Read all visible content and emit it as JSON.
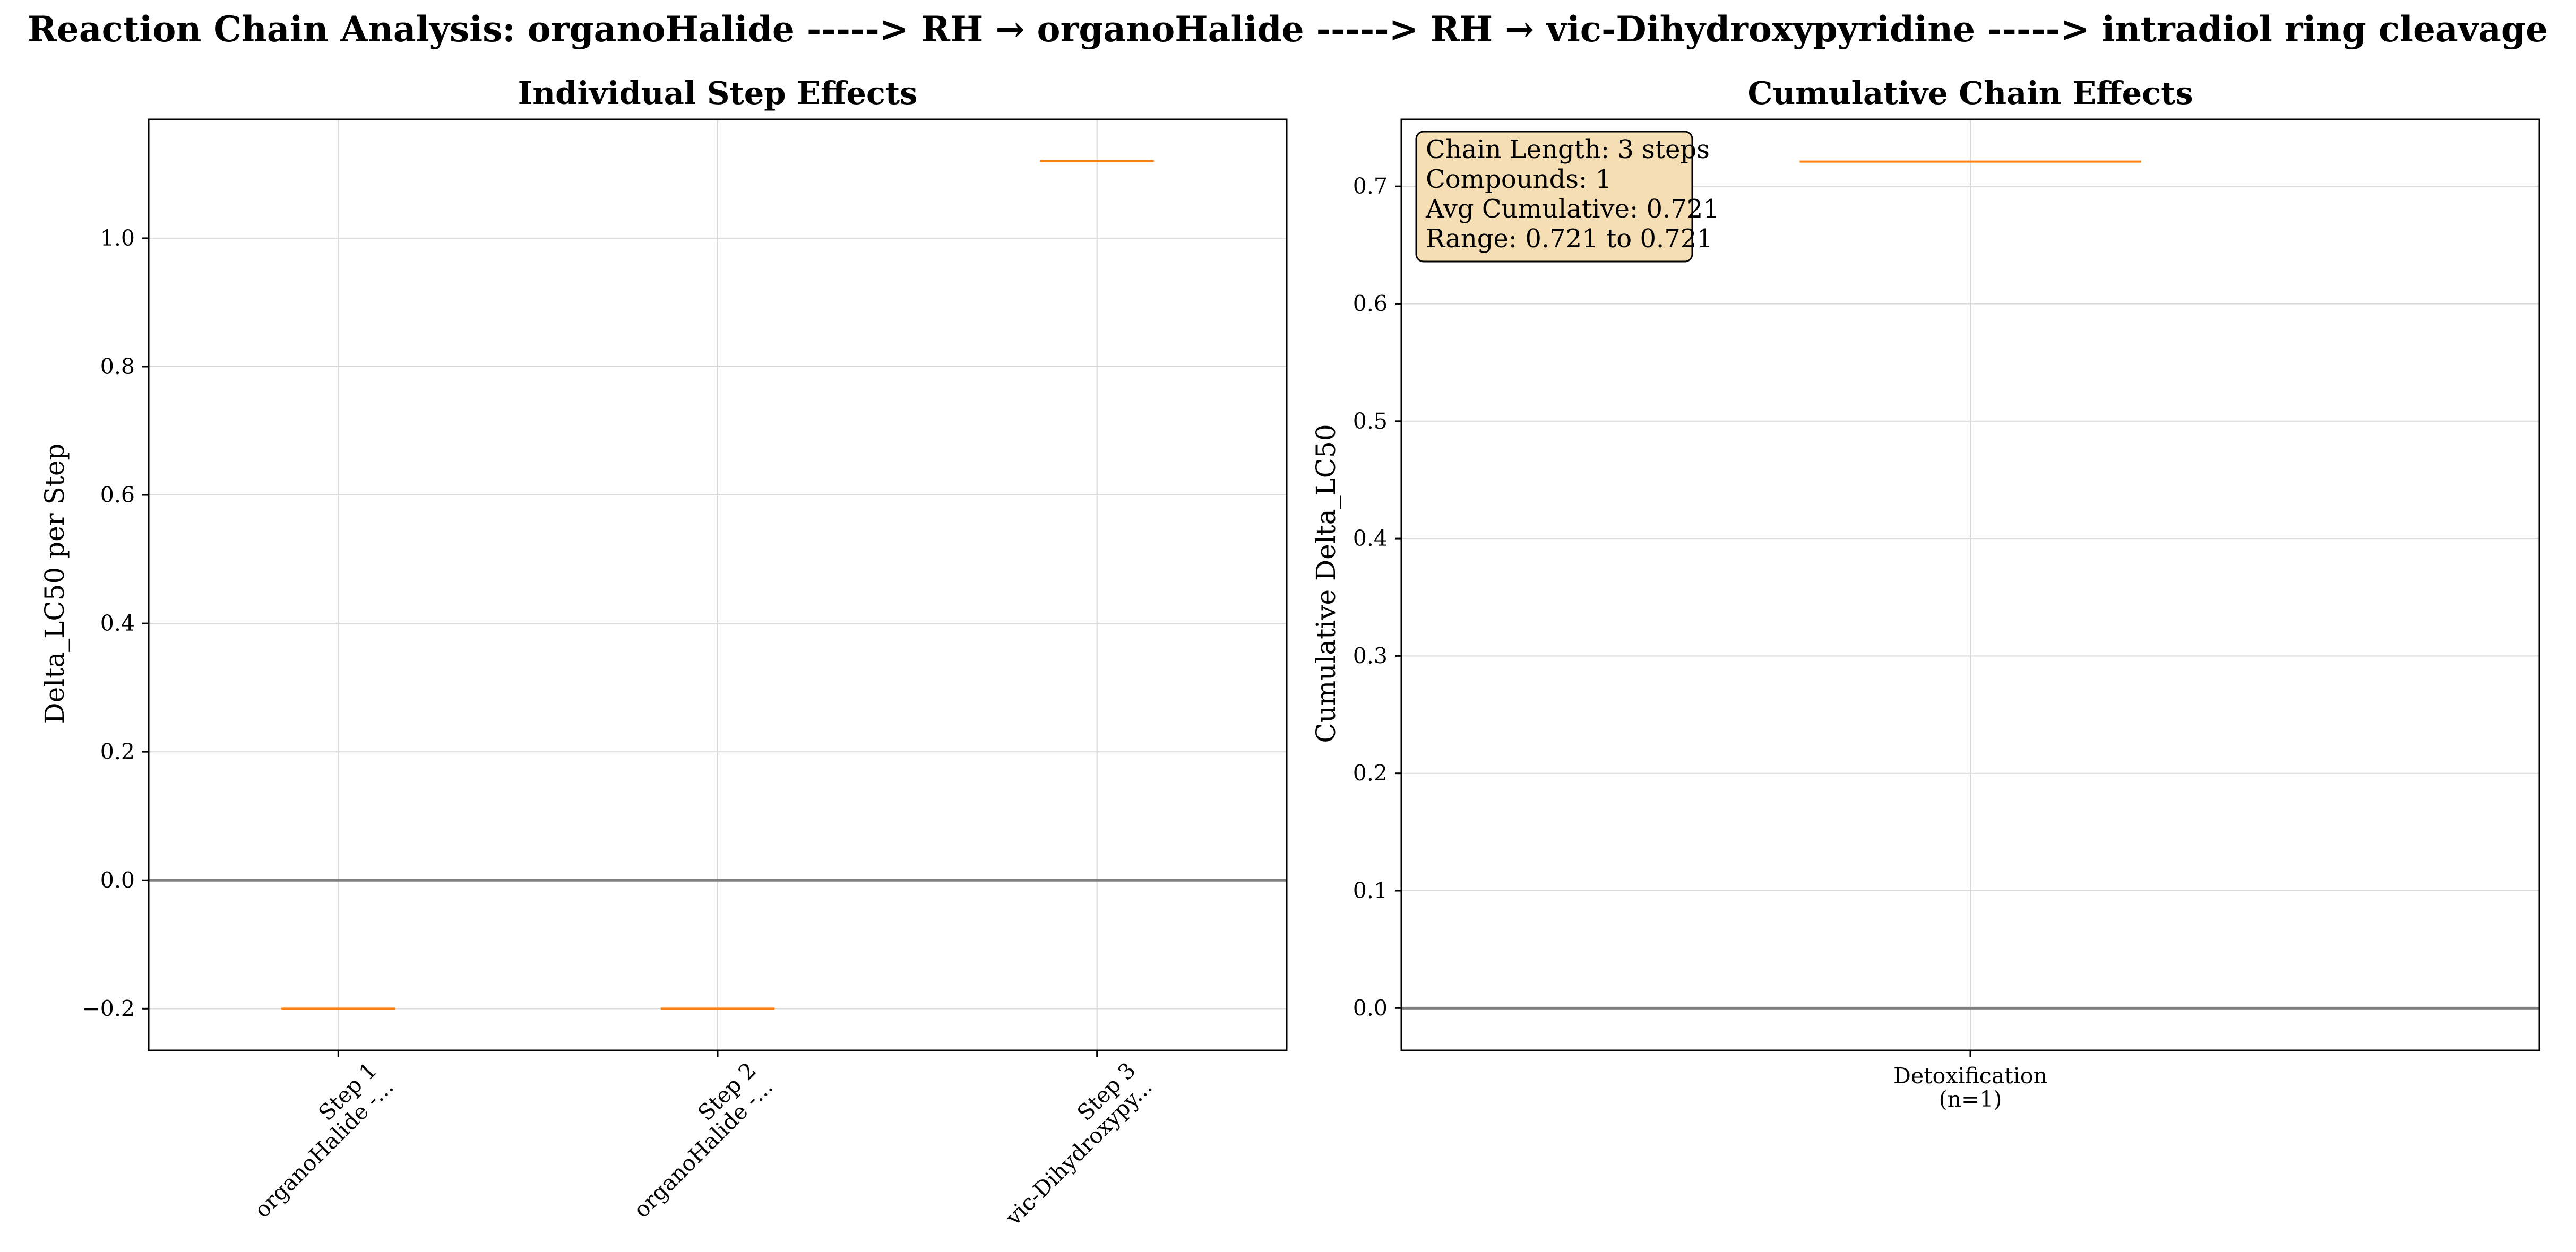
{
  "figure": {
    "title": "Reaction Chain Analysis: organoHalide -----> RH → organoHalide -----> RH → vic-Dihydroxypyridine -----> intradiol ring cleavage"
  },
  "colors": {
    "median": "#ff7f0e",
    "zero_line": "#808080",
    "grid": "#d9d9d9",
    "info_box_fill": "#f5deb3",
    "axes": "#000000"
  },
  "chart_data": [
    {
      "type": "box",
      "title": "Individual Step Effects",
      "xlabel": "",
      "ylabel": "Delta_LC50 per Step",
      "ylim": [
        -0.265,
        1.185
      ],
      "yticks": [
        -0.2,
        0.0,
        0.2,
        0.4,
        0.6,
        0.8,
        1.0
      ],
      "ytick_labels": [
        "−0.2",
        "0.0",
        "0.2",
        "0.4",
        "0.6",
        "0.8",
        "1.0"
      ],
      "grid": true,
      "reference_line": 0.0,
      "categories": [
        {
          "line1": "Step 1",
          "line2": "organoHalide -..."
        },
        {
          "line1": "Step 2",
          "line2": "organoHalide -..."
        },
        {
          "line1": "Step 3",
          "line2": "vic-Dihydroxypy..."
        }
      ],
      "values": [
        -0.2,
        -0.2,
        1.12
      ]
    },
    {
      "type": "box",
      "title": "Cumulative Chain Effects",
      "xlabel": "",
      "ylabel": "Cumulative Delta_LC50",
      "ylim": [
        -0.036,
        0.757
      ],
      "yticks": [
        0.0,
        0.1,
        0.2,
        0.3,
        0.4,
        0.5,
        0.6,
        0.7
      ],
      "ytick_labels": [
        "0.0",
        "0.1",
        "0.2",
        "0.3",
        "0.4",
        "0.5",
        "0.6",
        "0.7"
      ],
      "grid": true,
      "reference_line": 0.0,
      "categories": [
        {
          "line1": "Detoxification",
          "line2": "(n=1)"
        }
      ],
      "values": [
        0.721
      ],
      "info_box": {
        "placement": "top-left",
        "lines": [
          "Chain Length: 3 steps",
          "Compounds: 1",
          "Avg Cumulative: 0.721",
          "Range: 0.721 to 0.721"
        ]
      }
    }
  ]
}
